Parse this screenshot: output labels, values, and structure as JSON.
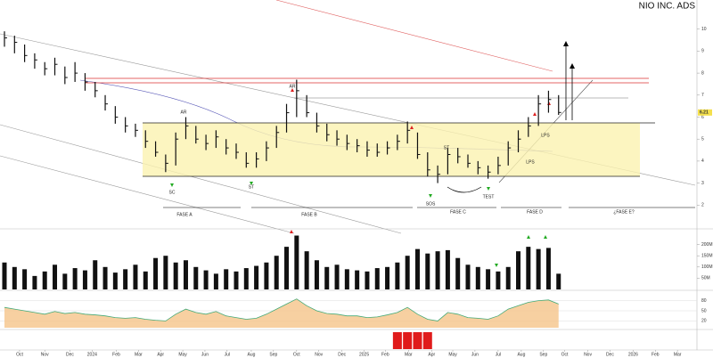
{
  "chart_data": {
    "type": "ohlc",
    "title": "NIO INC. ADS",
    "xlim": [
      0,
      69
    ],
    "xticks": [
      {
        "value": 1.5,
        "label": "Oct"
      },
      {
        "value": 4,
        "label": "Nov"
      },
      {
        "value": 6.5,
        "label": "Dec"
      },
      {
        "value": 8.7,
        "label": "2024"
      },
      {
        "value": 11.1,
        "label": "Feb"
      },
      {
        "value": 13.3,
        "label": "Mar"
      },
      {
        "value": 15.5,
        "label": "Apr"
      },
      {
        "value": 17.7,
        "label": "May"
      },
      {
        "value": 19.9,
        "label": "Jun"
      },
      {
        "value": 22.1,
        "label": "Jul"
      },
      {
        "value": 24.5,
        "label": "Aug"
      },
      {
        "value": 26.7,
        "label": "Sep"
      },
      {
        "value": 29,
        "label": "Oct"
      },
      {
        "value": 31.2,
        "label": "Nov"
      },
      {
        "value": 33.5,
        "label": "Dec"
      },
      {
        "value": 35.7,
        "label": "2025"
      },
      {
        "value": 37.8,
        "label": "Feb"
      },
      {
        "value": 40.1,
        "label": "Mar"
      },
      {
        "value": 42.4,
        "label": "Apr"
      },
      {
        "value": 44.5,
        "label": "May"
      },
      {
        "value": 46.7,
        "label": "Jun"
      },
      {
        "value": 49,
        "label": "Jul"
      },
      {
        "value": 51.3,
        "label": "Aug"
      },
      {
        "value": 53.5,
        "label": "Sep"
      },
      {
        "value": 55.6,
        "label": "Oct"
      },
      {
        "value": 57.9,
        "label": "Nov"
      },
      {
        "value": 60.1,
        "label": "Dec"
      },
      {
        "value": 62.4,
        "label": "2026"
      },
      {
        "value": 64.6,
        "label": "Feb"
      },
      {
        "value": 66.8,
        "label": "Mar"
      }
    ],
    "ylim": [
      1,
      11
    ],
    "yticks": [
      2,
      3,
      4,
      5,
      6,
      7,
      8,
      9,
      10
    ],
    "color": "#111111",
    "high": [
      9.9,
      9.7,
      9.3,
      8.9,
      8.5,
      8.7,
      8.3,
      8.5,
      8.0,
      7.6,
      7.0,
      6.5,
      6.0,
      5.7,
      5.4,
      4.9,
      4.3,
      5.3,
      6.0,
      5.6,
      5.2,
      5.4,
      5.0,
      4.8,
      4.4,
      4.4,
      4.9,
      5.6,
      6.6,
      7.7,
      7.0,
      6.2,
      5.7,
      5.4,
      5.2,
      5.0,
      4.9,
      4.8,
      4.9,
      5.2,
      5.8,
      5.3,
      4.4,
      3.8,
      4.6,
      4.6,
      4.3,
      4.0,
      3.8,
      4.2,
      4.9,
      5.4,
      6.0,
      7.0,
      7.2,
      7.0
    ],
    "low": [
      9.2,
      8.9,
      8.5,
      8.2,
      7.9,
      7.9,
      7.5,
      7.6,
      7.2,
      6.9,
      6.3,
      5.7,
      5.3,
      5.1,
      4.6,
      4.2,
      3.5,
      3.8,
      5.0,
      4.8,
      4.5,
      4.6,
      4.3,
      4.1,
      3.7,
      3.7,
      4.0,
      4.6,
      5.3,
      6.0,
      6.0,
      5.3,
      4.9,
      4.7,
      4.5,
      4.4,
      4.2,
      4.2,
      4.3,
      4.5,
      4.8,
      4.1,
      3.3,
      3.0,
      3.4,
      3.9,
      3.7,
      3.4,
      3.2,
      3.4,
      3.8,
      4.4,
      5.1,
      5.6,
      6.2,
      6.1
    ],
    "close": [
      9.6,
      9.4,
      8.8,
      8.6,
      8.2,
      8.4,
      7.8,
      8.0,
      7.6,
      7.2,
      6.6,
      6.0,
      5.6,
      5.4,
      4.9,
      4.4,
      3.9,
      5.0,
      5.6,
      5.0,
      4.8,
      5.1,
      4.6,
      4.4,
      3.9,
      4.1,
      4.6,
      5.3,
      6.2,
      7.2,
      6.2,
      5.6,
      5.2,
      5.0,
      4.8,
      4.7,
      4.5,
      4.4,
      4.6,
      4.9,
      5.4,
      4.3,
      3.6,
      3.4,
      4.3,
      4.2,
      3.9,
      3.7,
      3.5,
      3.8,
      4.6,
      5.0,
      5.6,
      6.6,
      6.8,
      6.21
    ],
    "volume": {
      "color": "#111111",
      "ylim": [
        0,
        250
      ],
      "yticks": [
        {
          "value": 50,
          "label": "50M"
        },
        {
          "value": 100,
          "label": "100M"
        },
        {
          "value": 150,
          "label": "150M"
        },
        {
          "value": 200,
          "label": "200M"
        }
      ],
      "values": [
        120,
        100,
        90,
        60,
        80,
        110,
        70,
        95,
        85,
        130,
        100,
        75,
        90,
        110,
        80,
        140,
        150,
        120,
        130,
        100,
        85,
        70,
        90,
        80,
        95,
        105,
        120,
        150,
        190,
        240,
        170,
        130,
        100,
        110,
        90,
        85,
        80,
        95,
        100,
        120,
        150,
        180,
        160,
        170,
        175,
        140,
        110,
        100,
        90,
        80,
        100,
        170,
        190,
        180,
        185,
        70
      ]
    },
    "oscillator": {
      "color": "#f5c48a",
      "ylim": [
        0,
        100
      ],
      "yticks": [
        20,
        50,
        80
      ],
      "values": [
        60,
        55,
        50,
        45,
        40,
        48,
        42,
        45,
        40,
        38,
        35,
        30,
        28,
        30,
        25,
        22,
        20,
        40,
        55,
        45,
        40,
        48,
        35,
        30,
        25,
        28,
        40,
        55,
        70,
        85,
        65,
        50,
        42,
        40,
        35,
        35,
        30,
        32,
        38,
        45,
        60,
        40,
        25,
        20,
        45,
        40,
        30,
        28,
        25,
        35,
        55,
        65,
        75,
        80,
        82,
        70
      ]
    },
    "signal": {
      "color": "#e01b1b",
      "ylim": [
        0,
        1
      ],
      "values": [
        0,
        0,
        0,
        0,
        0,
        0,
        0,
        0,
        0,
        0,
        0,
        0,
        0,
        0,
        0,
        0,
        0,
        0,
        0,
        0,
        0,
        0,
        0,
        0,
        0,
        0,
        0,
        0,
        0,
        0,
        0,
        0,
        0,
        0,
        0,
        0,
        0,
        0,
        0,
        1,
        1,
        1,
        1,
        0,
        0,
        0,
        0,
        0,
        0,
        0,
        0,
        0,
        0,
        0,
        0,
        0
      ]
    },
    "annotations": [
      "AR",
      "SC",
      "ST",
      "ST",
      "AR",
      "SOS",
      "TEST",
      "LPS",
      "LPS"
    ],
    "phases": [
      "FASE A",
      "FASE B",
      "FASE C",
      "FASE D",
      "¿FASE E?"
    ]
  }
}
